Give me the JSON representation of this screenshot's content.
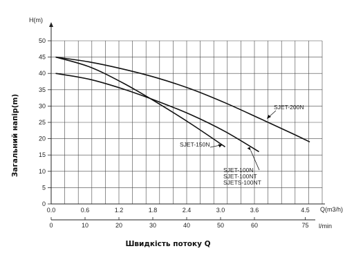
{
  "chart_data": {
    "type": "line",
    "ylabel": "Загальний напір(m)",
    "xlabel": "Швидкість потоку Q",
    "y_unit": "H(m)",
    "x_unit": "Q(m3/h)",
    "x2_unit": "l/min",
    "xlim": [
      0,
      4.8
    ],
    "ylim": [
      0,
      50
    ],
    "x_ticks": [
      "0.0",
      "0.6",
      "1.2",
      "1.8",
      "2.4",
      "3.0",
      "3.6",
      "4.5"
    ],
    "x_tick_values": [
      0.0,
      0.6,
      1.2,
      1.8,
      2.4,
      3.0,
      3.6,
      4.5
    ],
    "x2_ticks": [
      "0",
      "10",
      "20",
      "30",
      "40",
      "50",
      "60",
      "75"
    ],
    "y_ticks": [
      "0",
      "5",
      "10",
      "15",
      "20",
      "25",
      "30",
      "35",
      "40",
      "45",
      "50"
    ],
    "y_tick_values": [
      0,
      5,
      10,
      15,
      20,
      25,
      30,
      35,
      40,
      45,
      50
    ],
    "grid": true,
    "series": [
      {
        "name": "SJET-150N",
        "x": [
          0.0,
          0.6,
          1.2,
          1.8,
          2.4,
          3.0
        ],
        "y": [
          45,
          42,
          37,
          31,
          24.5,
          17.5
        ]
      },
      {
        "name": "SJET-100N\nSJET-100NT\nSJETS-100NT",
        "label_lines": [
          "SJET-100N",
          "SJET-100NT",
          "SJETS-100NT"
        ],
        "x": [
          0.0,
          0.6,
          1.2,
          1.8,
          2.4,
          3.0,
          3.6
        ],
        "y": [
          40,
          38.2,
          35.2,
          31.5,
          27.3,
          22.2,
          16
        ]
      },
      {
        "name": "SJET-200N",
        "x": [
          0.0,
          0.6,
          1.2,
          1.8,
          2.4,
          3.0,
          3.6,
          4.2,
          4.5
        ],
        "y": [
          45,
          43.5,
          41.3,
          38.6,
          35.2,
          31,
          26.3,
          21.5,
          19
        ]
      }
    ]
  }
}
